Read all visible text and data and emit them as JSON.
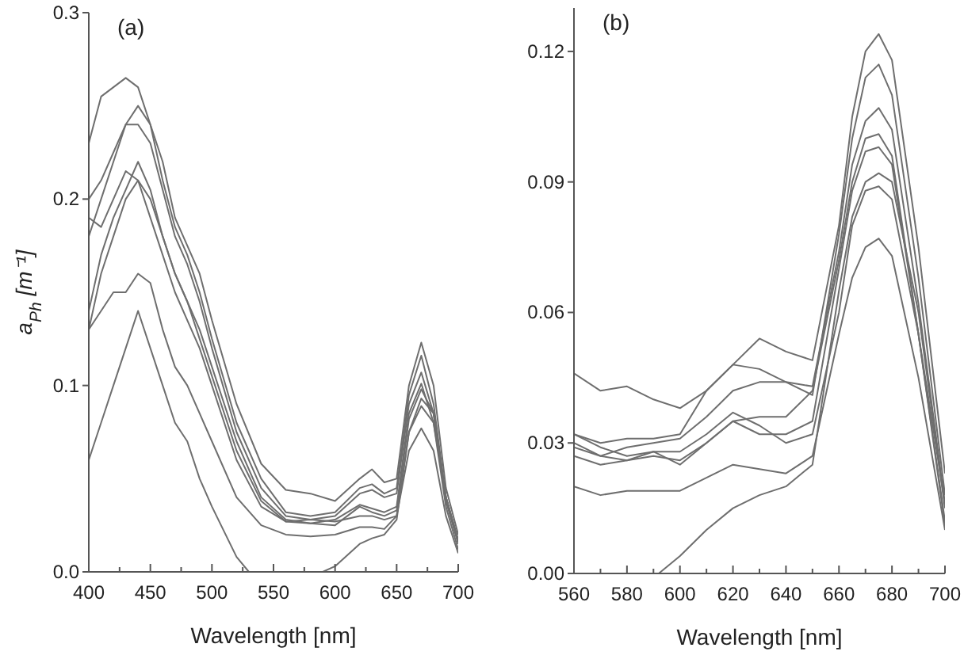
{
  "chart_data": [
    {
      "type": "line",
      "title": "(a)",
      "xlabel": "Wavelength [nm]",
      "ylabel": "a$_{Ph}$ [m⁻¹]",
      "x": [
        400,
        410,
        420,
        430,
        440,
        450,
        460,
        470,
        480,
        490,
        500,
        520,
        540,
        560,
        580,
        600,
        620,
        630,
        640,
        650,
        660,
        670,
        680,
        690,
        700
      ],
      "series": [
        {
          "color": "#6e6e6e",
          "values": [
            0.23,
            0.255,
            0.26,
            0.265,
            0.26,
            0.24,
            0.22,
            0.19,
            0.175,
            0.16,
            0.135,
            0.09,
            0.058,
            0.044,
            0.042,
            0.038,
            0.05,
            0.055,
            0.048,
            0.05,
            0.1,
            0.123,
            0.1,
            0.045,
            0.02
          ]
        },
        {
          "color": "#6e6e6e",
          "values": [
            0.18,
            0.2,
            0.22,
            0.24,
            0.25,
            0.24,
            0.21,
            0.185,
            0.17,
            0.15,
            0.125,
            0.08,
            0.05,
            0.032,
            0.03,
            0.032,
            0.045,
            0.047,
            0.042,
            0.045,
            0.095,
            0.116,
            0.09,
            0.04,
            0.017
          ]
        },
        {
          "color": "#6e6e6e",
          "values": [
            0.2,
            0.21,
            0.225,
            0.24,
            0.24,
            0.23,
            0.205,
            0.18,
            0.165,
            0.145,
            0.12,
            0.075,
            0.045,
            0.03,
            0.028,
            0.03,
            0.042,
            0.044,
            0.04,
            0.042,
            0.09,
            0.107,
            0.085,
            0.038,
            0.015
          ]
        },
        {
          "color": "#6e6e6e",
          "values": [
            0.19,
            0.185,
            0.2,
            0.215,
            0.21,
            0.2,
            0.18,
            0.16,
            0.145,
            0.13,
            0.11,
            0.07,
            0.04,
            0.028,
            0.026,
            0.028,
            0.036,
            0.034,
            0.032,
            0.035,
            0.085,
            0.101,
            0.08,
            0.035,
            0.012
          ]
        },
        {
          "color": "#6e6e6e",
          "values": [
            0.14,
            0.17,
            0.19,
            0.205,
            0.22,
            0.205,
            0.18,
            0.16,
            0.145,
            0.125,
            0.105,
            0.065,
            0.038,
            0.027,
            0.026,
            0.025,
            0.035,
            0.032,
            0.03,
            0.033,
            0.082,
            0.098,
            0.085,
            0.04,
            0.016
          ]
        },
        {
          "color": "#6e6e6e",
          "values": [
            0.13,
            0.16,
            0.18,
            0.2,
            0.21,
            0.19,
            0.17,
            0.15,
            0.135,
            0.12,
            0.1,
            0.06,
            0.035,
            0.027,
            0.028,
            0.027,
            0.03,
            0.03,
            0.028,
            0.03,
            0.075,
            0.089,
            0.08,
            0.04,
            0.017
          ]
        },
        {
          "color": "#6e6e6e",
          "values": [
            0.13,
            0.14,
            0.15,
            0.15,
            0.16,
            0.155,
            0.13,
            0.11,
            0.1,
            0.085,
            0.07,
            0.04,
            0.025,
            0.02,
            0.019,
            0.02,
            0.024,
            0.024,
            0.023,
            0.03,
            0.065,
            0.077,
            0.065,
            0.03,
            0.01
          ]
        },
        {
          "color": "#6e6e6e",
          "x": [
            400,
            410,
            420,
            430,
            440,
            450,
            460,
            470,
            480,
            490,
            500,
            520,
            530,
            590,
            600,
            620,
            630,
            640,
            650,
            660,
            670,
            680,
            690,
            700
          ],
          "values": [
            0.06,
            0.08,
            0.1,
            0.12,
            0.14,
            0.12,
            0.1,
            0.08,
            0.07,
            0.05,
            0.035,
            0.008,
            0,
            0,
            0.003,
            0.015,
            0.018,
            0.02,
            0.028,
            0.075,
            0.093,
            0.085,
            0.04,
            0.016
          ]
        }
      ],
      "xlim": [
        400,
        700
      ],
      "ylim": [
        0,
        0.3
      ],
      "xticks": [
        400,
        {
          "value": 425,
          "label": null
        },
        450,
        {
          "value": 475,
          "label": null
        },
        500,
        {
          "value": 525,
          "label": null
        },
        550,
        {
          "value": 575,
          "label": null
        },
        600,
        {
          "value": 625,
          "label": null
        },
        650,
        {
          "value": 675,
          "label": null
        },
        700
      ],
      "yticks": [
        {
          "value": 0,
          "label": "0.0"
        },
        0.1,
        0.2,
        0.3
      ],
      "grid": false,
      "marker": "none",
      "line_style": "solid"
    },
    {
      "type": "line",
      "title": "(b)",
      "xlabel": "Wavelength [nm]",
      "x": [
        560,
        570,
        580,
        590,
        600,
        610,
        620,
        630,
        640,
        650,
        660,
        665,
        670,
        675,
        680,
        690,
        700
      ],
      "series": [
        {
          "color": "#6e6e6e",
          "values": [
            0.046,
            0.042,
            0.043,
            0.04,
            0.038,
            0.042,
            0.048,
            0.054,
            0.051,
            0.049,
            0.08,
            0.105,
            0.12,
            0.124,
            0.118,
            0.075,
            0.023
          ]
        },
        {
          "color": "#6e6e6e",
          "values": [
            0.032,
            0.03,
            0.031,
            0.031,
            0.032,
            0.042,
            0.048,
            0.047,
            0.044,
            0.041,
            0.078,
            0.1,
            0.114,
            0.117,
            0.11,
            0.068,
            0.018
          ]
        },
        {
          "color": "#6e6e6e",
          "values": [
            0.03,
            0.027,
            0.029,
            0.03,
            0.031,
            0.036,
            0.042,
            0.044,
            0.044,
            0.043,
            0.074,
            0.094,
            0.104,
            0.107,
            0.102,
            0.062,
            0.016
          ]
        },
        {
          "color": "#6e6e6e",
          "values": [
            0.029,
            0.027,
            0.026,
            0.027,
            0.026,
            0.03,
            0.035,
            0.036,
            0.036,
            0.042,
            0.072,
            0.09,
            0.1,
            0.101,
            0.096,
            0.055,
            0.012
          ]
        },
        {
          "color": "#6e6e6e",
          "values": [
            0.032,
            0.029,
            0.027,
            0.028,
            0.025,
            0.03,
            0.035,
            0.032,
            0.032,
            0.035,
            0.07,
            0.088,
            0.097,
            0.098,
            0.094,
            0.055,
            0.011
          ]
        },
        {
          "color": "#6e6e6e",
          "values": [
            0.027,
            0.025,
            0.026,
            0.028,
            0.028,
            0.032,
            0.037,
            0.034,
            0.03,
            0.032,
            0.06,
            0.08,
            0.088,
            0.089,
            0.086,
            0.055,
            0.016
          ]
        },
        {
          "color": "#6e6e6e",
          "values": [
            0.02,
            0.018,
            0.019,
            0.019,
            0.019,
            0.022,
            0.025,
            0.024,
            0.023,
            0.027,
            0.055,
            0.068,
            0.075,
            0.077,
            0.073,
            0.045,
            0.01
          ]
        },
        {
          "color": "#6e6e6e",
          "x": [
            592,
            600,
            610,
            620,
            630,
            640,
            650,
            660,
            665,
            670,
            675,
            680,
            690,
            700
          ],
          "values": [
            0,
            0.004,
            0.01,
            0.015,
            0.018,
            0.02,
            0.025,
            0.065,
            0.082,
            0.09,
            0.092,
            0.09,
            0.06,
            0.015
          ]
        }
      ],
      "xlim": [
        560,
        700
      ],
      "ylim": [
        0,
        0.13
      ],
      "xticks": [
        560,
        {
          "value": 570,
          "label": null
        },
        580,
        {
          "value": 590,
          "label": null
        },
        600,
        {
          "value": 610,
          "label": null
        },
        620,
        {
          "value": 630,
          "label": null
        },
        640,
        {
          "value": 650,
          "label": null
        },
        660,
        {
          "value": 670,
          "label": null
        },
        680,
        {
          "value": 690,
          "label": null
        },
        700
      ],
      "yticks": [
        {
          "value": 0,
          "label": "0.00"
        },
        {
          "value": 0.03,
          "label": "0.03"
        },
        {
          "value": 0.06,
          "label": "0.06"
        },
        {
          "value": 0.09,
          "label": "0.09"
        },
        {
          "value": 0.12,
          "label": "0.12"
        }
      ],
      "grid": false,
      "marker": "none",
      "line_style": "solid"
    }
  ]
}
